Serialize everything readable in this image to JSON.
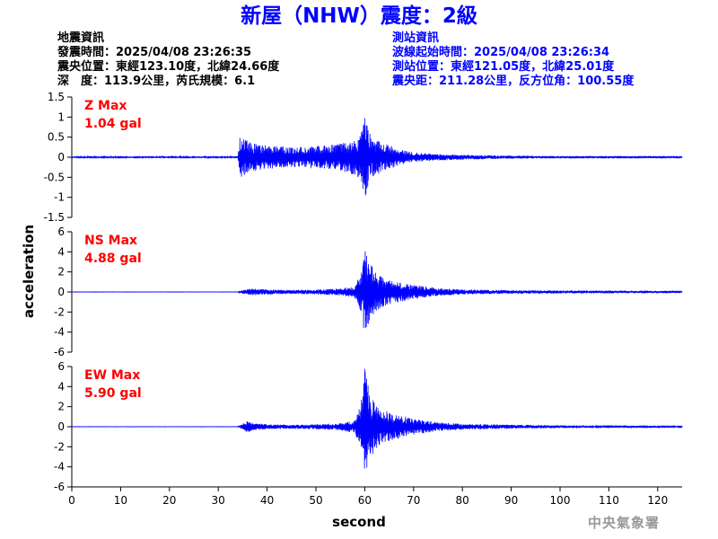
{
  "header": {
    "title": "新屋（NHW）震度：2級"
  },
  "quake_info": {
    "heading": "地震資訊",
    "origin_time": "發震時間：2025/04/08 23:26:35",
    "epicenter": "震央位置：東經123.10度，北緯24.66度",
    "depth_magnitude": "深　度：113.9公里，芮氏規模：6.1"
  },
  "station_info": {
    "heading": "測站資訊",
    "wave_start": "波線起始時間：2025/04/08 23:26:34",
    "location": "測站位置：東經121.05度，北緯25.01度",
    "distance": "震央距：211.28公里，反方位角：100.55度"
  },
  "footer": {
    "credit": "中央氣象署"
  },
  "colors": {
    "title": "#0000ff",
    "trace": "#0000ff",
    "peak_label": "#ff0000",
    "station_text": "#0000ff"
  },
  "chart_data": {
    "type": "line",
    "xlabel": "second",
    "ylabel": "acceleration",
    "xlim": [
      0,
      125
    ],
    "xticks": [
      0,
      10,
      20,
      30,
      40,
      50,
      60,
      70,
      80,
      90,
      100,
      110,
      120
    ],
    "grid": false,
    "panels": [
      {
        "name": "Z Max",
        "peak": "1.04 gal",
        "ylim": [
          -1.5,
          1.5
        ],
        "yticks": [
          "-1.5",
          "-1",
          "-0.5",
          "0",
          "0.5",
          "1",
          "1.5"
        ],
        "envelope": {
          "t": [
            0,
            34,
            34.6,
            35.5,
            37,
            40,
            45,
            50,
            55,
            57,
            58.5,
            59.5,
            60,
            61,
            62,
            64,
            67,
            70,
            75,
            80,
            85,
            90,
            100,
            110,
            125
          ],
          "amp": [
            0.02,
            0.02,
            0.7,
            0.45,
            0.35,
            0.3,
            0.25,
            0.28,
            0.35,
            0.4,
            0.5,
            0.7,
            1.04,
            0.6,
            0.45,
            0.35,
            0.2,
            0.12,
            0.08,
            0.06,
            0.05,
            0.04,
            0.03,
            0.03,
            0.03
          ]
        }
      },
      {
        "name": "NS Max",
        "peak": "4.88 gal",
        "ylim": [
          -6,
          6
        ],
        "yticks": [
          "-6",
          "-4",
          "-2",
          "0",
          "2",
          "4",
          "6"
        ],
        "envelope": {
          "t": [
            0,
            34,
            35,
            37,
            40,
            45,
            50,
            55,
            58,
            59.5,
            60,
            61,
            62,
            64,
            67,
            70,
            75,
            80,
            90,
            100,
            125
          ],
          "amp": [
            0.01,
            0.01,
            0.2,
            0.35,
            0.25,
            0.2,
            0.25,
            0.35,
            0.6,
            2.5,
            4.88,
            3.0,
            2.0,
            1.4,
            1.0,
            0.7,
            0.4,
            0.25,
            0.18,
            0.15,
            0.12
          ]
        }
      },
      {
        "name": "EW Max",
        "peak": "5.90 gal",
        "ylim": [
          -6,
          6
        ],
        "yticks": [
          "-6",
          "-4",
          "-2",
          "0",
          "2",
          "4",
          "6"
        ],
        "envelope": {
          "t": [
            0,
            34,
            35,
            36,
            37,
            40,
            45,
            50,
            55,
            58,
            59.5,
            60,
            61,
            62,
            64,
            67,
            70,
            75,
            80,
            90,
            100,
            125
          ],
          "amp": [
            0.01,
            0.01,
            0.3,
            0.6,
            0.35,
            0.25,
            0.2,
            0.25,
            0.35,
            0.7,
            3.0,
            5.9,
            3.5,
            2.4,
            1.6,
            1.2,
            0.8,
            0.45,
            0.3,
            0.2,
            0.15,
            0.12
          ]
        }
      }
    ]
  }
}
